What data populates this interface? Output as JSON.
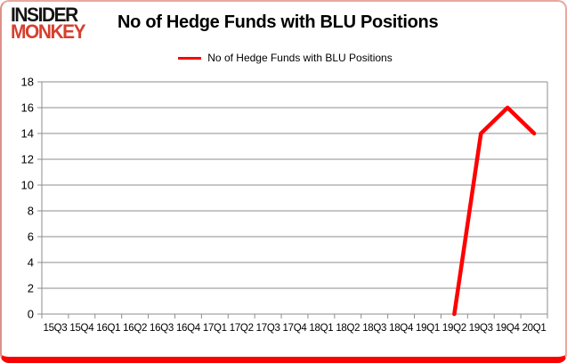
{
  "branding": {
    "logo_line1": "INSIDER",
    "logo_line2": "MONKEY"
  },
  "header": {
    "title": "No of Hedge Funds with BLU Positions"
  },
  "legend": {
    "label": "No of Hedge Funds with BLU Positions"
  },
  "colors": {
    "series_red": "#ff0000",
    "logo_red": "#d6402e",
    "card_bottom_red": "#fb0202",
    "gridline_gray": "#8c8c8c"
  },
  "chart_data": {
    "type": "line",
    "title": "No of Hedge Funds with BLU Positions",
    "categories": [
      "15Q3",
      "15Q4",
      "16Q1",
      "16Q2",
      "16Q3",
      "16Q4",
      "17Q1",
      "17Q2",
      "17Q3",
      "17Q4",
      "18Q1",
      "18Q2",
      "18Q3",
      "18Q4",
      "19Q1",
      "19Q2",
      "19Q3",
      "19Q4",
      "20Q1"
    ],
    "series": [
      {
        "name": "No of Hedge Funds with BLU Positions",
        "color": "#ff0000",
        "values": [
          null,
          null,
          null,
          null,
          null,
          null,
          null,
          null,
          null,
          null,
          null,
          null,
          null,
          null,
          null,
          0,
          14,
          16,
          14
        ]
      }
    ],
    "xlabel": "",
    "ylabel": "",
    "ylim": [
      0,
      18
    ],
    "ytick_step": 2,
    "grid": true,
    "legend_position": "top-center"
  }
}
